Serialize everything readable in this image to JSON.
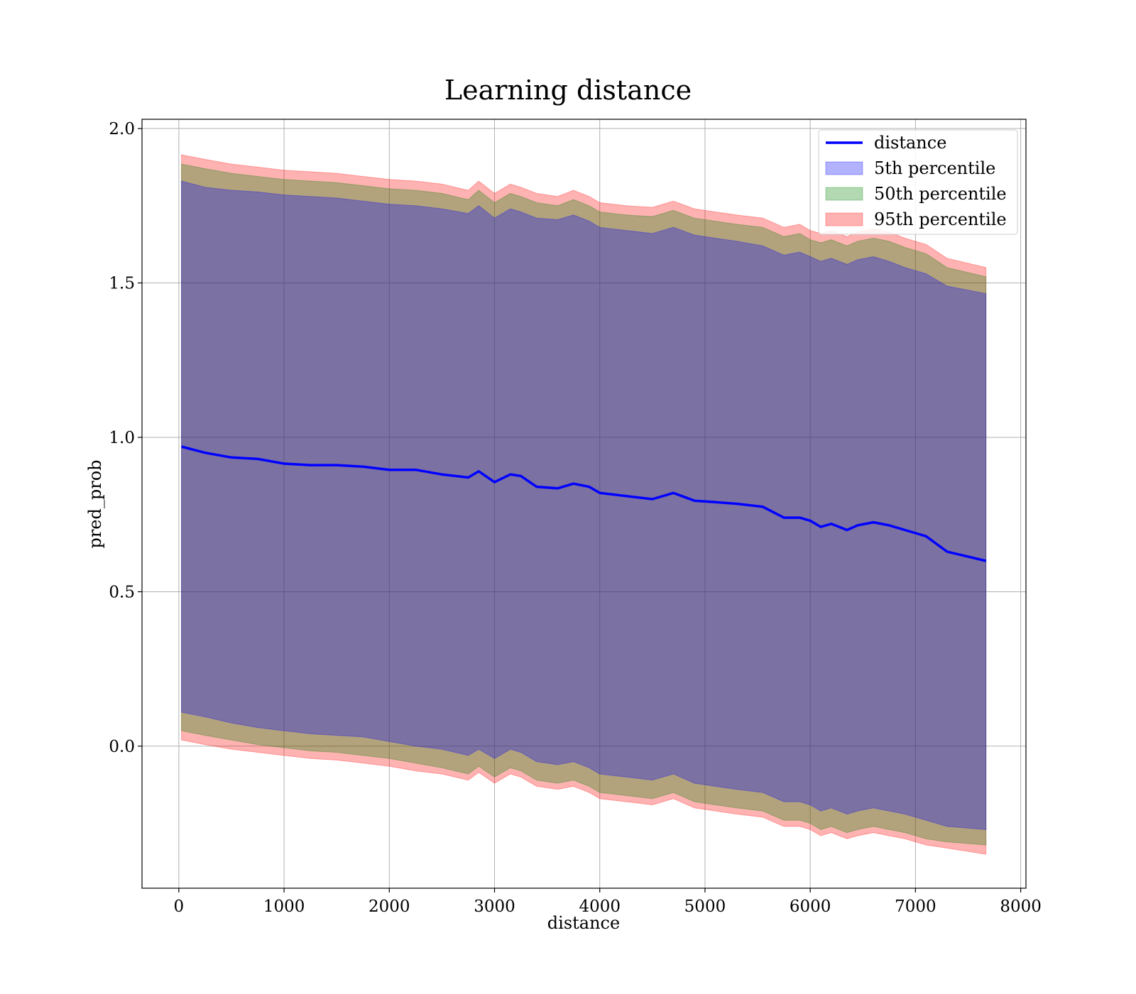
{
  "chart_data": {
    "type": "line",
    "title": "Learning distance",
    "xlabel": "distance",
    "ylabel": "pred_prob",
    "xlim": [
      -350,
      8050
    ],
    "ylim": [
      -0.46,
      2.03
    ],
    "xticks": [
      0,
      1000,
      2000,
      3000,
      4000,
      5000,
      6000,
      7000,
      8000
    ],
    "yticks": [
      0.0,
      0.5,
      1.0,
      1.5,
      2.0
    ],
    "grid": true,
    "legend_position": "top-right",
    "x": [
      25,
      250,
      500,
      750,
      1000,
      1250,
      1500,
      1750,
      2000,
      2250,
      2500,
      2750,
      2850,
      3000,
      3150,
      3250,
      3400,
      3600,
      3750,
      3900,
      4000,
      4250,
      4500,
      4700,
      4900,
      5100,
      5300,
      5550,
      5750,
      5900,
      6000,
      6100,
      6200,
      6350,
      6450,
      6600,
      6750,
      6900,
      7100,
      7300,
      7670
    ],
    "series": [
      {
        "name": "distance",
        "kind": "line",
        "color": "#0000ff",
        "values": [
          0.97,
          0.95,
          0.935,
          0.93,
          0.915,
          0.91,
          0.91,
          0.905,
          0.895,
          0.895,
          0.88,
          0.87,
          0.89,
          0.855,
          0.88,
          0.875,
          0.84,
          0.835,
          0.85,
          0.84,
          0.82,
          0.81,
          0.8,
          0.82,
          0.795,
          0.79,
          0.785,
          0.775,
          0.74,
          0.74,
          0.73,
          0.71,
          0.72,
          0.7,
          0.715,
          0.725,
          0.715,
          0.7,
          0.68,
          0.63,
          0.6
        ]
      },
      {
        "name": "5th percentile",
        "kind": "band",
        "color": "#0000ff",
        "lower": [
          0.11,
          0.095,
          0.075,
          0.06,
          0.05,
          0.04,
          0.035,
          0.03,
          0.015,
          0.0,
          -0.01,
          -0.03,
          -0.01,
          -0.04,
          -0.01,
          -0.02,
          -0.05,
          -0.06,
          -0.05,
          -0.07,
          -0.09,
          -0.1,
          -0.11,
          -0.09,
          -0.12,
          -0.13,
          -0.14,
          -0.15,
          -0.18,
          -0.18,
          -0.19,
          -0.21,
          -0.2,
          -0.22,
          -0.21,
          -0.2,
          -0.21,
          -0.22,
          -0.24,
          -0.26,
          -0.27
        ],
        "upper": [
          1.83,
          1.81,
          1.8,
          1.795,
          1.785,
          1.78,
          1.775,
          1.765,
          1.755,
          1.75,
          1.74,
          1.725,
          1.75,
          1.71,
          1.74,
          1.73,
          1.71,
          1.705,
          1.72,
          1.7,
          1.68,
          1.67,
          1.66,
          1.68,
          1.655,
          1.645,
          1.635,
          1.62,
          1.59,
          1.6,
          1.585,
          1.57,
          1.58,
          1.56,
          1.575,
          1.585,
          1.57,
          1.55,
          1.53,
          1.49,
          1.465
        ]
      },
      {
        "name": "50th percentile",
        "kind": "band",
        "color": "#008000",
        "lower": [
          0.05,
          0.035,
          0.02,
          0.005,
          -0.005,
          -0.015,
          -0.02,
          -0.03,
          -0.04,
          -0.055,
          -0.07,
          -0.09,
          -0.065,
          -0.1,
          -0.07,
          -0.08,
          -0.11,
          -0.12,
          -0.11,
          -0.13,
          -0.15,
          -0.16,
          -0.17,
          -0.15,
          -0.18,
          -0.19,
          -0.2,
          -0.21,
          -0.24,
          -0.24,
          -0.25,
          -0.27,
          -0.26,
          -0.28,
          -0.27,
          -0.26,
          -0.27,
          -0.28,
          -0.3,
          -0.31,
          -0.32
        ],
        "upper": [
          1.885,
          1.87,
          1.855,
          1.845,
          1.835,
          1.83,
          1.825,
          1.815,
          1.805,
          1.8,
          1.79,
          1.77,
          1.8,
          1.76,
          1.79,
          1.78,
          1.76,
          1.75,
          1.77,
          1.75,
          1.73,
          1.72,
          1.715,
          1.735,
          1.71,
          1.7,
          1.69,
          1.68,
          1.65,
          1.66,
          1.64,
          1.63,
          1.64,
          1.62,
          1.635,
          1.645,
          1.635,
          1.615,
          1.595,
          1.55,
          1.52
        ]
      },
      {
        "name": "95th percentile",
        "kind": "band",
        "color": "#ff0000",
        "lower": [
          0.02,
          0.005,
          -0.01,
          -0.02,
          -0.03,
          -0.04,
          -0.045,
          -0.055,
          -0.065,
          -0.08,
          -0.09,
          -0.11,
          -0.085,
          -0.12,
          -0.09,
          -0.1,
          -0.13,
          -0.14,
          -0.13,
          -0.15,
          -0.17,
          -0.18,
          -0.19,
          -0.17,
          -0.2,
          -0.21,
          -0.22,
          -0.23,
          -0.26,
          -0.26,
          -0.27,
          -0.29,
          -0.28,
          -0.3,
          -0.29,
          -0.28,
          -0.29,
          -0.3,
          -0.32,
          -0.33,
          -0.35
        ],
        "upper": [
          1.915,
          1.9,
          1.885,
          1.875,
          1.865,
          1.86,
          1.855,
          1.845,
          1.835,
          1.83,
          1.82,
          1.8,
          1.83,
          1.79,
          1.82,
          1.81,
          1.79,
          1.78,
          1.8,
          1.78,
          1.76,
          1.75,
          1.745,
          1.765,
          1.74,
          1.73,
          1.72,
          1.71,
          1.68,
          1.69,
          1.67,
          1.66,
          1.67,
          1.65,
          1.665,
          1.675,
          1.665,
          1.645,
          1.625,
          1.58,
          1.55
        ]
      }
    ]
  }
}
